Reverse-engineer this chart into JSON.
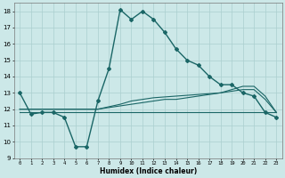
{
  "xlabel": "Humidex (Indice chaleur)",
  "bg_color": "#cce8e8",
  "grid_color": "#aacfcf",
  "line_color": "#1a6666",
  "xlim": [
    -0.5,
    23.5
  ],
  "ylim": [
    9,
    18.5
  ],
  "yticks": [
    9,
    10,
    11,
    12,
    13,
    14,
    15,
    16,
    17,
    18
  ],
  "xticks": [
    0,
    1,
    2,
    3,
    4,
    5,
    6,
    7,
    8,
    9,
    10,
    11,
    12,
    13,
    14,
    15,
    16,
    17,
    18,
    19,
    20,
    21,
    22,
    23
  ],
  "main_x": [
    0,
    1,
    2,
    3,
    4,
    5,
    6,
    7,
    8,
    9,
    10,
    11,
    12,
    13,
    14,
    15,
    16,
    17,
    18,
    19,
    20,
    21,
    22,
    23
  ],
  "main_y": [
    13.0,
    11.7,
    11.8,
    11.8,
    11.5,
    9.7,
    9.7,
    12.5,
    14.5,
    18.1,
    17.5,
    18.0,
    17.5,
    16.7,
    15.7,
    15.0,
    14.7,
    14.0,
    13.5,
    13.5,
    13.0,
    12.8,
    11.8,
    11.5
  ],
  "line2_x": [
    0,
    1,
    2,
    3,
    4,
    5,
    6,
    7,
    8,
    9,
    10,
    11,
    12,
    13,
    14,
    15,
    16,
    17,
    18,
    19,
    20,
    21,
    22,
    23
  ],
  "line2_y": [
    12.0,
    12.0,
    12.0,
    12.0,
    12.0,
    12.0,
    12.0,
    12.0,
    12.1,
    12.2,
    12.3,
    12.4,
    12.5,
    12.6,
    12.6,
    12.7,
    12.8,
    12.9,
    13.0,
    13.2,
    13.4,
    13.4,
    12.8,
    11.8
  ],
  "line3_x": [
    0,
    1,
    2,
    3,
    4,
    5,
    6,
    7,
    8,
    9,
    10,
    11,
    12,
    13,
    14,
    15,
    16,
    17,
    18,
    19,
    20,
    21,
    22,
    23
  ],
  "line3_y": [
    12.0,
    12.0,
    12.0,
    12.0,
    12.0,
    12.0,
    12.0,
    12.0,
    12.15,
    12.3,
    12.5,
    12.6,
    12.7,
    12.75,
    12.8,
    12.85,
    12.9,
    12.95,
    13.0,
    13.1,
    13.2,
    13.2,
    12.6,
    11.8
  ],
  "line4_x": [
    0,
    23
  ],
  "line4_y": [
    11.8,
    11.8
  ]
}
